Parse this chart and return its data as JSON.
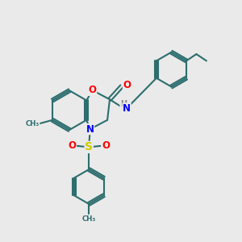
{
  "bg_color": "#eaeaea",
  "bond_color": "#2d6e6e",
  "bond_width": 1.5,
  "atom_colors": {
    "O": "#ff0000",
    "N": "#0000ff",
    "S": "#cccc00",
    "H": "#808080",
    "C": "#2d6e6e"
  },
  "font_size": 8.5,
  "fig_size": [
    3.0,
    3.0
  ],
  "dpi": 100,
  "xlim": [
    0,
    10
  ],
  "ylim": [
    0,
    10
  ]
}
